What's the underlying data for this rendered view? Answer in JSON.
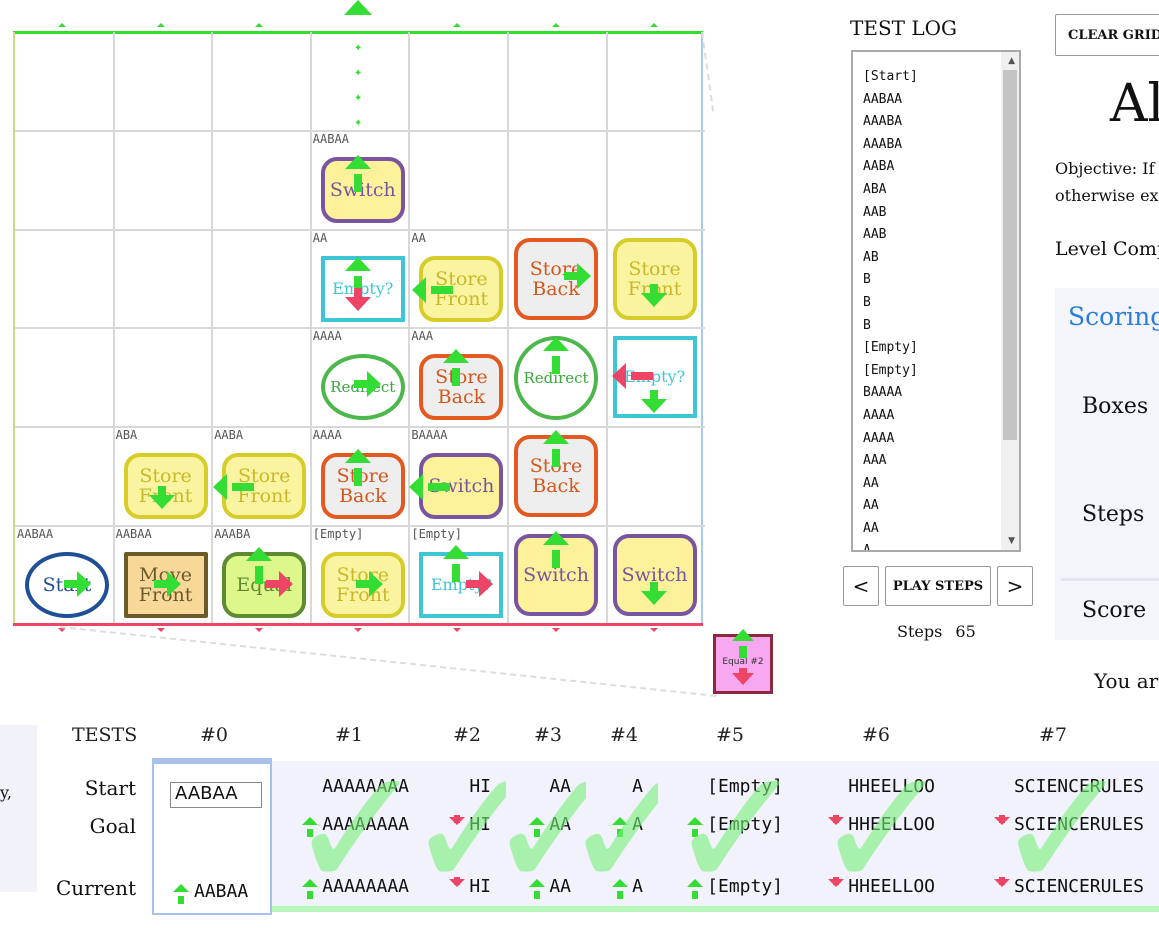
{
  "grid": {
    "cells": [
      {
        "row": 1,
        "col": 3,
        "label": "AABAA",
        "node": "Switch",
        "kind": "switch"
      },
      {
        "row": 2,
        "col": 3,
        "label": "AA",
        "node": "Empty?",
        "kind": "empty"
      },
      {
        "row": 2,
        "col": 4,
        "label": "AA",
        "node": "Store Front",
        "kind": "store-front"
      },
      {
        "row": 2,
        "col": 5,
        "label": "",
        "node": "Store Back",
        "kind": "store-back"
      },
      {
        "row": 2,
        "col": 6,
        "label": "",
        "node": "Store Front",
        "kind": "store-front"
      },
      {
        "row": 3,
        "col": 3,
        "label": "AAAA",
        "node": "Redirect",
        "kind": "redirect"
      },
      {
        "row": 3,
        "col": 4,
        "label": "AAA",
        "node": "Store Back",
        "kind": "store-back"
      },
      {
        "row": 3,
        "col": 5,
        "label": "",
        "node": "Redirect",
        "kind": "redirect"
      },
      {
        "row": 3,
        "col": 6,
        "label": "",
        "node": "Empty?",
        "kind": "empty"
      },
      {
        "row": 4,
        "col": 1,
        "label": "ABA",
        "node": "Store Front",
        "kind": "store-front"
      },
      {
        "row": 4,
        "col": 2,
        "label": "AABA",
        "node": "Store Front",
        "kind": "store-front"
      },
      {
        "row": 4,
        "col": 3,
        "label": "AAAA",
        "node": "Store Back",
        "kind": "store-back"
      },
      {
        "row": 4,
        "col": 4,
        "label": "BAAAA",
        "node": "Switch",
        "kind": "switch"
      },
      {
        "row": 4,
        "col": 5,
        "label": "",
        "node": "Store Back",
        "kind": "store-back"
      },
      {
        "row": 5,
        "col": 0,
        "label": "AABAA",
        "node": "Start",
        "kind": "start"
      },
      {
        "row": 5,
        "col": 1,
        "label": "AABAA",
        "node": "Move Front",
        "kind": "move-front"
      },
      {
        "row": 5,
        "col": 2,
        "label": "AAABA",
        "node": "Equal",
        "kind": "equal"
      },
      {
        "row": 5,
        "col": 3,
        "label": "[Empty]",
        "node": "Store Front",
        "kind": "store-front"
      },
      {
        "row": 5,
        "col": 4,
        "label": "[Empty]",
        "node": "Empty?",
        "kind": "empty"
      },
      {
        "row": 5,
        "col": 5,
        "label": "",
        "node": "Switch",
        "kind": "switch"
      },
      {
        "row": 5,
        "col": 6,
        "label": "",
        "node": "Switch",
        "kind": "switch"
      }
    ],
    "mini_node": "Equal #2",
    "mini_badge": "2"
  },
  "log": {
    "title": "TEST LOG",
    "entries": [
      "[Start]",
      "AABAA",
      "AAABA",
      "AAABA",
      "AABA",
      "ABA",
      "AAB",
      "AAB",
      "AB",
      "B",
      "B",
      "B",
      "[Empty]",
      "[Empty]",
      "BAAAA",
      "AAAA",
      "AAAA",
      "AAA",
      "AA",
      "AA",
      "AA",
      "A"
    ],
    "prev": "<",
    "play": "PLAY STEPS",
    "next": ">",
    "steps_label": "Steps",
    "steps_value": "65"
  },
  "panel": {
    "clear": "CLEAR GRID",
    "title": "Al",
    "objective_line1": "Objective: If",
    "objective_line2": "otherwise ex",
    "level_complete": "Level Comp",
    "scoring_title": "Scoring",
    "boxes_label": "Boxes",
    "steps_label": "Steps",
    "score_label": "Score",
    "you_are": "You ar"
  },
  "left_fragment": "y,",
  "tests": {
    "header": "TESTS",
    "start_label": "Start",
    "goal_label": "Goal",
    "current_label": "Current",
    "t0_input": "AABAA",
    "t0_current": "AABAA",
    "columns": [
      {
        "id": "#0"
      },
      {
        "id": "#1",
        "start": "AAAAAAAA",
        "goal": "AAAAAAAA",
        "current": "AAAAAAAA",
        "goal_dir": "up"
      },
      {
        "id": "#2",
        "start": "HI",
        "goal": "HI",
        "current": "HI",
        "goal_dir": "down"
      },
      {
        "id": "#3",
        "start": "AA",
        "goal": "AA",
        "current": "AA",
        "goal_dir": "up"
      },
      {
        "id": "#4",
        "start": "A",
        "goal": "A",
        "current": "A",
        "goal_dir": "up"
      },
      {
        "id": "#5",
        "start": "[Empty]",
        "goal": "[Empty]",
        "current": "[Empty]",
        "goal_dir": "up"
      },
      {
        "id": "#6",
        "start": "HHEELLOO",
        "goal": "HHEELLOO",
        "current": "HHEELLOO",
        "goal_dir": "down"
      },
      {
        "id": "#7",
        "start": "SCIENCERULES",
        "goal": "SCIENCERULES",
        "current": "SCIENCERULES",
        "goal_dir": "down"
      }
    ],
    "check_mark": "✓"
  },
  "colors": {
    "accept": "#33dd33",
    "reject": "#ee4466",
    "accent": "#2a7ed8"
  }
}
